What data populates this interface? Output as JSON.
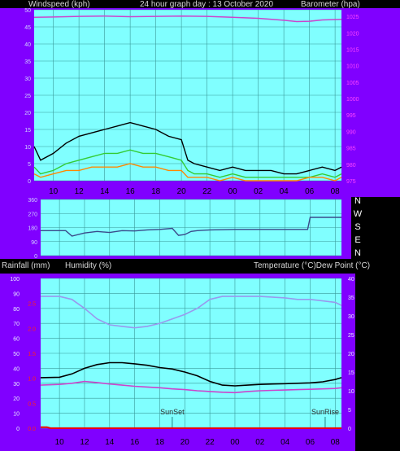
{
  "chart_data": [
    {
      "type": "line",
      "left_axis_label": "Windspeed (kph)",
      "title": "24 hour graph day : 13 October 2020",
      "right_axis_label": "Barometer (hpa)",
      "x_ticks": [
        "10",
        "12",
        "14",
        "16",
        "18",
        "20",
        "22",
        "00",
        "02",
        "04",
        "06",
        "08"
      ],
      "left_ticks": [
        "0",
        "5",
        "10",
        "15",
        "20",
        "25",
        "30",
        "35",
        "40",
        "45",
        "50"
      ],
      "right_ticks": [
        "975",
        "980",
        "985",
        "990",
        "995",
        "1000",
        "1005",
        "1010",
        "1015",
        "1020",
        "1025"
      ],
      "ylim_left": [
        0,
        50
      ],
      "ylim_right": [
        975,
        1027
      ],
      "series": [
        {
          "name": "",
          "color": "#cc44cc",
          "axis": "right",
          "x": [
            8.5,
            10,
            12,
            14,
            16,
            18,
            20,
            22,
            24,
            26,
            28,
            29,
            30,
            31,
            32.5
          ],
          "values": [
            1024.7,
            1024.8,
            1025.0,
            1025.1,
            1024.9,
            1025.0,
            1025.1,
            1025.0,
            1024.7,
            1024.4,
            1023.8,
            1023.4,
            1023.5,
            1023.9,
            1024.1
          ]
        },
        {
          "name": "",
          "color": "#000000",
          "axis": "left",
          "x": [
            8.5,
            9,
            10,
            11,
            12,
            13,
            14,
            15,
            16,
            17,
            18,
            19,
            20,
            20.5,
            21,
            22,
            23,
            24,
            25,
            26,
            27,
            28,
            29,
            30,
            31,
            32,
            32.5
          ],
          "values": [
            10,
            6,
            8,
            11,
            13,
            14,
            15,
            16,
            17,
            16,
            15,
            13,
            12,
            6,
            5,
            4,
            3,
            4,
            3,
            3,
            3,
            2,
            2,
            3,
            4,
            3,
            4
          ]
        },
        {
          "name": "",
          "color": "#33cc33",
          "axis": "left",
          "x": [
            8.5,
            9,
            10,
            11,
            12,
            13,
            14,
            15,
            16,
            17,
            18,
            19,
            20,
            20.5,
            21,
            22,
            23,
            24,
            25,
            26,
            27,
            28,
            29,
            30,
            31,
            32,
            32.5
          ],
          "values": [
            4,
            2,
            3,
            5,
            6,
            7,
            8,
            8,
            9,
            8,
            8,
            7,
            6,
            3,
            2,
            2,
            1,
            2,
            1,
            1,
            1,
            1,
            1,
            1,
            2,
            1,
            2
          ]
        },
        {
          "name": "",
          "color": "#ff8800",
          "axis": "left",
          "x": [
            8.5,
            9,
            10,
            11,
            12,
            13,
            14,
            15,
            16,
            17,
            18,
            19,
            20,
            20.5,
            21,
            22,
            23,
            24,
            25,
            26,
            27,
            28,
            29,
            30,
            31,
            32,
            32.5
          ],
          "values": [
            2,
            1,
            2,
            3,
            3,
            4,
            4,
            4,
            5,
            4,
            4,
            3,
            3,
            1,
            1,
            1,
            0,
            1,
            0,
            0,
            0,
            0,
            0,
            1,
            1,
            0,
            1
          ]
        }
      ]
    },
    {
      "type": "line",
      "right_ticks": [
        "N",
        "W",
        "S",
        "E",
        "N"
      ],
      "left_ticks": [
        "0",
        "90",
        "180",
        "270",
        "360"
      ],
      "ylim": [
        0,
        360
      ],
      "series": [
        {
          "name": "",
          "color": "#3a4a8a",
          "x": [
            8.5,
            10,
            10.5,
            11,
            12,
            13,
            14,
            15,
            16,
            17,
            18,
            19,
            19.5,
            20,
            20.5,
            21,
            22,
            24,
            26,
            28,
            29.8,
            30,
            32.5
          ],
          "values": [
            160,
            160,
            160,
            125,
            145,
            155,
            148,
            160,
            158,
            165,
            168,
            175,
            130,
            135,
            155,
            160,
            165,
            168,
            168,
            168,
            168,
            245,
            245
          ]
        }
      ]
    },
    {
      "type": "line",
      "left_axis_label": "Rainfall (mm)",
      "middle_axis_label": "Humidity (%)",
      "right_axis_label": "Temperature (°C)Dew Point (°C)",
      "humidity_ticks": [
        "0",
        "10",
        "20",
        "30",
        "40",
        "50",
        "60",
        "70",
        "80",
        "90",
        "100"
      ],
      "rain_ticks": [
        "0.0",
        "0.5",
        "1.0",
        "1.5",
        "2.0",
        "2.5"
      ],
      "temp_ticks": [
        "0",
        "5",
        "10",
        "15",
        "20",
        "25",
        "30",
        "35",
        "40"
      ],
      "annotations": [
        {
          "text": "SunSet",
          "x": 19.0
        },
        {
          "text": "SunRise",
          "x": 31.2
        }
      ],
      "series": [
        {
          "name": "",
          "color": "#9999ee",
          "axis": "humidity",
          "x": [
            8.5,
            10,
            11,
            12,
            13,
            14,
            15,
            16,
            17,
            18,
            19,
            20,
            21,
            22,
            23,
            24,
            26,
            28,
            29,
            30,
            31,
            32,
            32.5
          ],
          "values": [
            88,
            88,
            86,
            80,
            73,
            69,
            68,
            67,
            68,
            70,
            73,
            76,
            80,
            86,
            88,
            88,
            88,
            87,
            86,
            86,
            85,
            84,
            82
          ]
        },
        {
          "name": "",
          "color": "#000000",
          "axis": "temp",
          "x": [
            8.5,
            10,
            11,
            12,
            13,
            14,
            15,
            16,
            17,
            18,
            19,
            20,
            21,
            22,
            23,
            24,
            25,
            26,
            27,
            28,
            29,
            30,
            31,
            32,
            32.5
          ],
          "values": [
            13.5,
            13.6,
            14.5,
            16,
            17,
            17.5,
            17.5,
            17.2,
            16.8,
            16.2,
            15.8,
            15,
            14,
            12.5,
            11.5,
            11.3,
            11.5,
            11.7,
            11.8,
            11.9,
            12,
            12.1,
            12.4,
            13,
            13.5
          ]
        },
        {
          "name": "",
          "color": "#cc44cc",
          "axis": "temp",
          "x": [
            8.5,
            10,
            11,
            12,
            13,
            14,
            15,
            16,
            17,
            18,
            19,
            20,
            21,
            22,
            23,
            24,
            25,
            26,
            27,
            28,
            29,
            30,
            31,
            32,
            32.5
          ],
          "values": [
            11.5,
            11.7,
            12,
            12.5,
            12.2,
            11.8,
            11.5,
            11.2,
            11,
            10.8,
            10.5,
            10.3,
            10,
            9.8,
            9.6,
            9.5,
            9.8,
            10,
            10.1,
            10.2,
            10.3,
            10.4,
            10.5,
            10.6,
            10.8
          ]
        },
        {
          "name": "",
          "color": "#ee0000",
          "axis": "rain",
          "x": [
            8.5,
            9,
            9.3,
            32.5
          ],
          "values": [
            0.02,
            0.02,
            0,
            0
          ]
        }
      ]
    }
  ]
}
